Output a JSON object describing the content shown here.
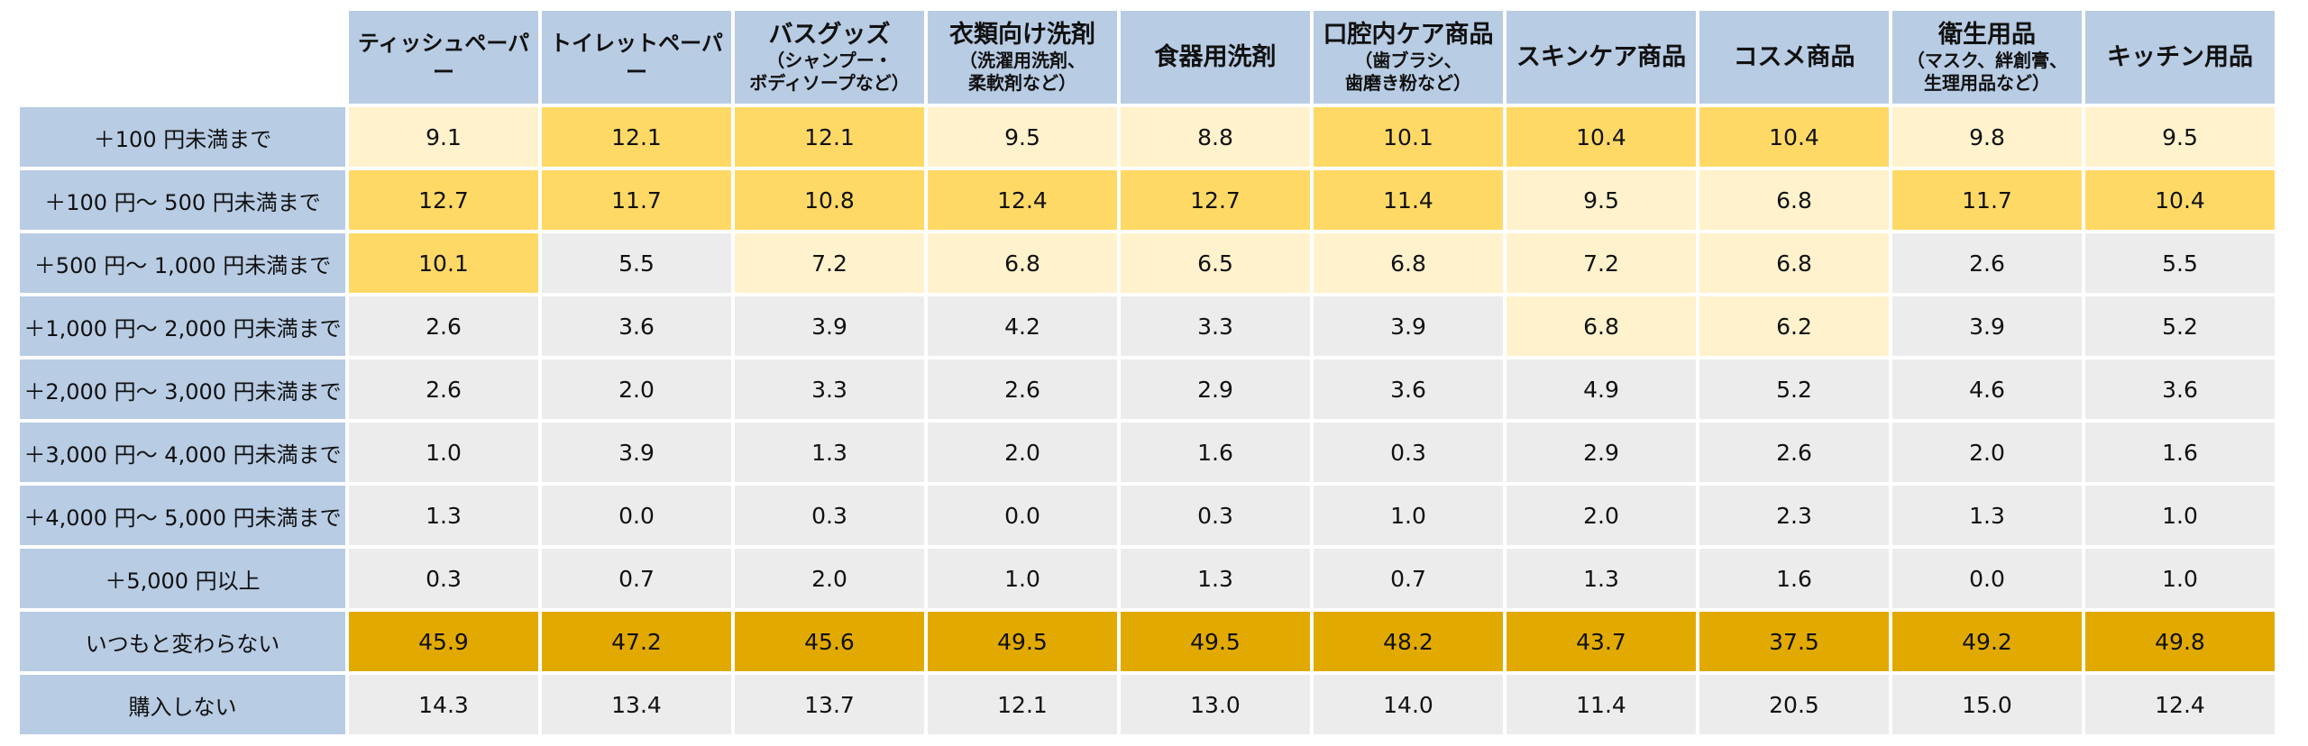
{
  "columns": [
    {
      "label": "ティッシュペーパー",
      "sub": ""
    },
    {
      "label": "トイレットペーパー",
      "sub": ""
    },
    {
      "label": "バスグッズ",
      "sub": "（シャンプー・\nボディソープなど）"
    },
    {
      "label": "衣類向け洗剤",
      "sub": "（洗濯用洗剤、\n柔軟剤など）"
    },
    {
      "label": "食器用洗剤",
      "sub": ""
    },
    {
      "label": "口腔内ケア商品",
      "sub": "（歯ブラシ、\n歯磨き粉など）"
    },
    {
      "label": "スキンケア商品",
      "sub": ""
    },
    {
      "label": "コスメ商品",
      "sub": ""
    },
    {
      "label": "衛生用品",
      "sub": "（マスク、絆創膏、\n生理用品など）"
    },
    {
      "label": "キッチン用品",
      "sub": ""
    }
  ],
  "colors": {
    "header": "#b8cce4",
    "strong": "#e2aa00",
    "medium": "#ffd966",
    "light": "#fff2cc",
    "neutral": "#ececec"
  },
  "chart_data": {
    "type": "table",
    "rows": [
      {
        "label": "＋100 円未満まで",
        "values": [
          "9.1",
          "12.1",
          "12.1",
          "9.5",
          "8.8",
          "10.1",
          "10.4",
          "10.4",
          "9.8",
          "9.5"
        ],
        "shades": [
          "light",
          "medium",
          "medium",
          "light",
          "light",
          "medium",
          "medium",
          "medium",
          "light",
          "light"
        ]
      },
      {
        "label": "＋100 円～ 500 円未満まで",
        "values": [
          "12.7",
          "11.7",
          "10.8",
          "12.4",
          "12.7",
          "11.4",
          "9.5",
          "6.8",
          "11.7",
          "10.4"
        ],
        "shades": [
          "medium",
          "medium",
          "medium",
          "medium",
          "medium",
          "medium",
          "light",
          "light",
          "medium",
          "medium"
        ]
      },
      {
        "label": "＋500 円～ 1,000 円未満まで",
        "values": [
          "10.1",
          "5.5",
          "7.2",
          "6.8",
          "6.5",
          "6.8",
          "7.2",
          "6.8",
          "2.6",
          "5.5"
        ],
        "shades": [
          "medium",
          "neutral",
          "light",
          "light",
          "light",
          "light",
          "light",
          "light",
          "neutral",
          "neutral"
        ]
      },
      {
        "label": "＋1,000 円～ 2,000 円未満まで",
        "values": [
          "2.6",
          "3.6",
          "3.9",
          "4.2",
          "3.3",
          "3.9",
          "6.8",
          "6.2",
          "3.9",
          "5.2"
        ],
        "shades": [
          "neutral",
          "neutral",
          "neutral",
          "neutral",
          "neutral",
          "neutral",
          "light",
          "light",
          "neutral",
          "neutral"
        ]
      },
      {
        "label": "＋2,000 円～ 3,000 円未満まで",
        "values": [
          "2.6",
          "2.0",
          "3.3",
          "2.6",
          "2.9",
          "3.6",
          "4.9",
          "5.2",
          "4.6",
          "3.6"
        ],
        "shades": [
          "neutral",
          "neutral",
          "neutral",
          "neutral",
          "neutral",
          "neutral",
          "neutral",
          "neutral",
          "neutral",
          "neutral"
        ]
      },
      {
        "label": "＋3,000 円～ 4,000 円未満まで",
        "values": [
          "1.0",
          "3.9",
          "1.3",
          "2.0",
          "1.6",
          "0.3",
          "2.9",
          "2.6",
          "2.0",
          "1.6"
        ],
        "shades": [
          "neutral",
          "neutral",
          "neutral",
          "neutral",
          "neutral",
          "neutral",
          "neutral",
          "neutral",
          "neutral",
          "neutral"
        ]
      },
      {
        "label": "＋4,000 円～ 5,000 円未満まで",
        "values": [
          "1.3",
          "0.0",
          "0.3",
          "0.0",
          "0.3",
          "1.0",
          "2.0",
          "2.3",
          "1.3",
          "1.0"
        ],
        "shades": [
          "neutral",
          "neutral",
          "neutral",
          "neutral",
          "neutral",
          "neutral",
          "neutral",
          "neutral",
          "neutral",
          "neutral"
        ]
      },
      {
        "label": "＋5,000 円以上",
        "values": [
          "0.3",
          "0.7",
          "2.0",
          "1.0",
          "1.3",
          "0.7",
          "1.3",
          "1.6",
          "0.0",
          "1.0"
        ],
        "shades": [
          "neutral",
          "neutral",
          "neutral",
          "neutral",
          "neutral",
          "neutral",
          "neutral",
          "neutral",
          "neutral",
          "neutral"
        ]
      },
      {
        "label": "いつもと変わらない",
        "values": [
          "45.9",
          "47.2",
          "45.6",
          "49.5",
          "49.5",
          "48.2",
          "43.7",
          "37.5",
          "49.2",
          "49.8"
        ],
        "shades": [
          "strong",
          "strong",
          "strong",
          "strong",
          "strong",
          "strong",
          "strong",
          "strong",
          "strong",
          "strong"
        ]
      },
      {
        "label": "購入しない",
        "values": [
          "14.3",
          "13.4",
          "13.7",
          "12.1",
          "13.0",
          "14.0",
          "11.4",
          "20.5",
          "15.0",
          "12.4"
        ],
        "shades": [
          "neutral",
          "neutral",
          "neutral",
          "neutral",
          "neutral",
          "neutral",
          "neutral",
          "neutral",
          "neutral",
          "neutral"
        ]
      }
    ]
  }
}
